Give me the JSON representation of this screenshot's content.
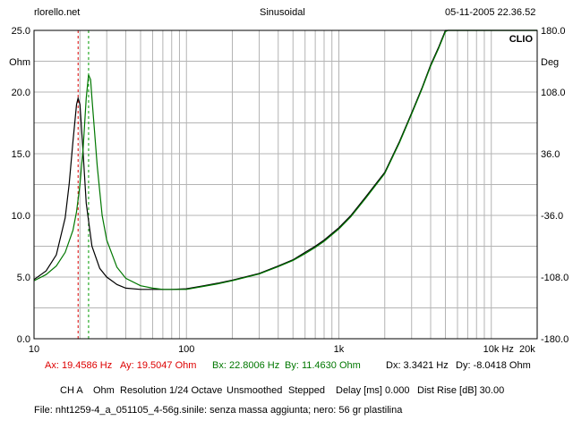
{
  "header": {
    "left": "rlorello.net",
    "center": "Sinusoidal",
    "right": "05-11-2005 22.36.52"
  },
  "chart_data": {
    "type": "line",
    "xscale": "log",
    "xlim": [
      10,
      20000
    ],
    "ylim": [
      0,
      25
    ],
    "y2lim": [
      -180,
      180
    ],
    "grid": true,
    "brand_label": "CLIO",
    "left_unit": "Ohm",
    "right_unit": "Deg",
    "x_ticks": [
      {
        "value": 10,
        "label": "10"
      },
      {
        "value": 100,
        "label": "100"
      },
      {
        "value": 1000,
        "label": "1k"
      },
      {
        "value": 10000,
        "label": "10k Hz"
      },
      {
        "value": 20000,
        "label": "20k"
      }
    ],
    "y_ticks": [
      {
        "value": 25,
        "label": "25.0"
      },
      {
        "value": 20,
        "label": "20.0"
      },
      {
        "value": 15,
        "label": "15.0"
      },
      {
        "value": 10,
        "label": "10.0"
      },
      {
        "value": 5,
        "label": "5.0"
      },
      {
        "value": 0,
        "label": "0.0"
      }
    ],
    "y2_ticks": [
      {
        "value": 180,
        "label": "180.0"
      },
      {
        "value": 108,
        "label": "108.0"
      },
      {
        "value": 36,
        "label": "36.0"
      },
      {
        "value": -36,
        "label": "-36.0"
      },
      {
        "value": -108,
        "label": "-108.0"
      },
      {
        "value": -180,
        "label": "-180.0"
      }
    ],
    "series": [
      {
        "color": "#000000",
        "x": [
          10,
          12,
          14,
          16,
          17,
          18,
          19,
          19.46,
          20,
          21,
          22,
          24,
          27,
          30,
          35,
          40,
          50,
          60,
          70,
          80,
          100,
          130,
          160,
          200,
          300,
          400,
          500,
          600,
          700,
          800,
          1000,
          1200,
          1500,
          2000,
          2500,
          3000,
          3500,
          4000,
          4500,
          5000,
          5200,
          20000
        ],
        "y": [
          4.8,
          5.5,
          6.8,
          9.8,
          12.5,
          16.0,
          19.0,
          19.5,
          19.0,
          15.0,
          11.0,
          7.5,
          5.7,
          5.0,
          4.4,
          4.1,
          4.0,
          4.0,
          4.0,
          4.0,
          4.05,
          4.3,
          4.5,
          4.75,
          5.3,
          5.9,
          6.4,
          7.0,
          7.5,
          8.0,
          9.0,
          10.0,
          11.5,
          13.5,
          16.0,
          18.3,
          20.3,
          22.2,
          23.6,
          25.0,
          25.0,
          25.0
        ]
      },
      {
        "color": "#007700",
        "x": [
          10,
          12,
          14,
          16,
          18,
          19,
          20,
          21,
          22,
          22.8,
          23.5,
          24,
          26,
          28,
          30,
          35,
          40,
          50,
          60,
          70,
          80,
          100,
          130,
          160,
          200,
          300,
          400,
          500,
          600,
          700,
          800,
          1000,
          1200,
          1500,
          2000,
          2500,
          3000,
          3500,
          4000,
          4500,
          5000,
          5200,
          20000
        ],
        "y": [
          4.7,
          5.2,
          5.9,
          7.0,
          8.8,
          10.3,
          12.5,
          15.5,
          19.5,
          21.4,
          21.0,
          19.5,
          14.0,
          10.0,
          8.0,
          5.8,
          4.9,
          4.3,
          4.1,
          4.0,
          4.0,
          4.0,
          4.25,
          4.45,
          4.7,
          5.25,
          5.85,
          6.35,
          6.9,
          7.4,
          7.9,
          8.9,
          9.9,
          11.4,
          13.4,
          15.9,
          18.2,
          20.2,
          22.1,
          23.5,
          24.9,
          25.0,
          25.0
        ]
      }
    ],
    "cursors": [
      {
        "x": 19.4586,
        "color": "#dd0000"
      },
      {
        "x": 22.8006,
        "color": "#009900"
      }
    ]
  },
  "readouts": {
    "ax": "Ax: 19.4586 Hz",
    "ay": "Ay: 19.5047 Ohm",
    "bx": "Bx: 22.8006 Hz",
    "by": "By: 11.4630 Ohm",
    "dx": "Dx: 3.3421 Hz",
    "dy": "Dy: -8.0418 Ohm"
  },
  "settings": {
    "channel": "CH A",
    "unit": "Ohm",
    "resolution": "Resolution 1/24 Octave",
    "smoothing": "Unsmoothed",
    "mode": "Stepped",
    "delay": "Delay [ms] 0.000",
    "dist_rise": "Dist Rise [dB] 30.00"
  },
  "file_line": "File: nht1259-4_a_051105_4-56g.sinile: senza massa aggiunta; nero: 56 gr plastilina",
  "colors": {
    "cursor_a": "#dd0000",
    "cursor_b": "#009900",
    "grid": "#b4b4b4"
  }
}
